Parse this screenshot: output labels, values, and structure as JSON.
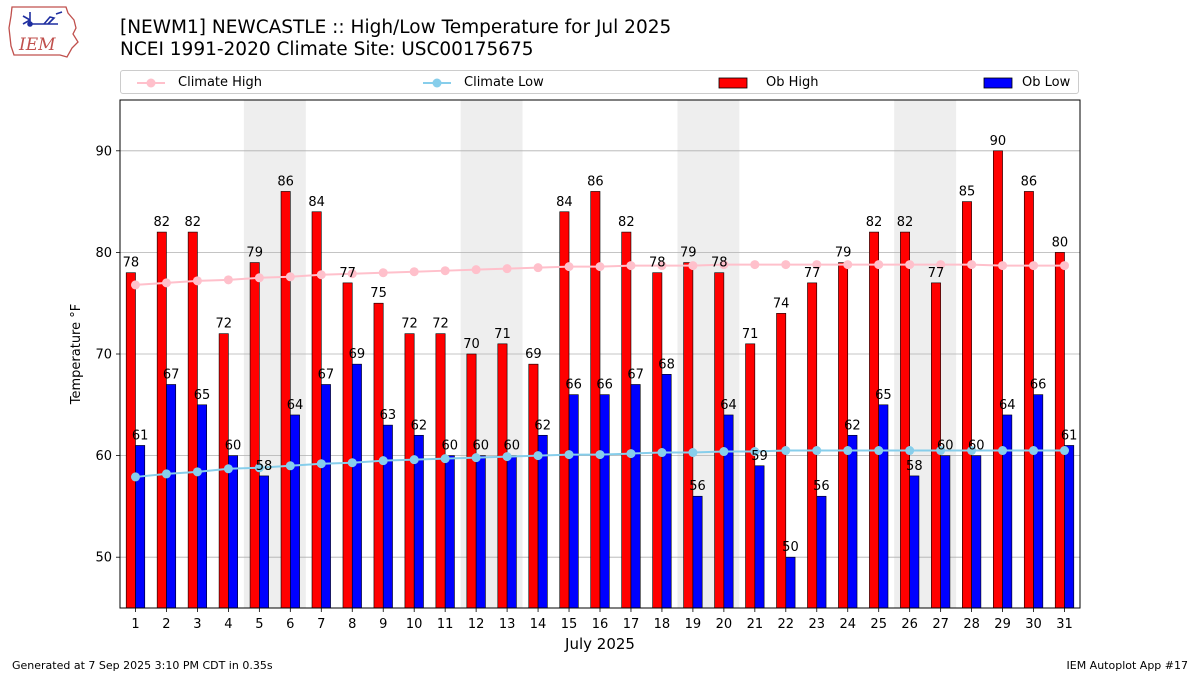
{
  "header": {
    "logo_text": "IEM",
    "title_line1": "[NEWM1] NEWCASTLE :: High/Low Temperature for Jul 2025",
    "title_line2": "NCEI 1991-2020 Climate Site: USC00175675"
  },
  "footer": {
    "left": "Generated at 7 Sep 2025 3:10 PM CDT in 0.35s",
    "right": "IEM Autoplot App #17"
  },
  "colors": {
    "ob_high": "#ff0000",
    "ob_low": "#0000ff",
    "climate_high": "#ffc0cb",
    "climate_low": "#87ceeb",
    "weekend_shade": "#eeeeee",
    "grid": "#b0b0b0"
  },
  "chart_data": {
    "type": "bar",
    "title": "[NEWM1] NEWCASTLE :: High/Low Temperature for Jul 2025",
    "subtitle": "NCEI 1991-2020 Climate Site: USC00175675",
    "xlabel": "July 2025",
    "ylabel": "Temperature °F",
    "ylim": [
      45,
      95
    ],
    "yticks": [
      50,
      60,
      70,
      80,
      90
    ],
    "grid": true,
    "legend_placement": "top",
    "categories": [
      1,
      2,
      3,
      4,
      5,
      6,
      7,
      8,
      9,
      10,
      11,
      12,
      13,
      14,
      15,
      16,
      17,
      18,
      19,
      20,
      21,
      22,
      23,
      24,
      25,
      26,
      27,
      28,
      29,
      30,
      31
    ],
    "shaded_days": [
      [
        5,
        6
      ],
      [
        12,
        13
      ],
      [
        19,
        20
      ],
      [
        26,
        27
      ]
    ],
    "series": [
      {
        "name": "Climate High",
        "kind": "line",
        "values": [
          76.8,
          77.0,
          77.2,
          77.3,
          77.5,
          77.6,
          77.8,
          77.9,
          78.0,
          78.1,
          78.2,
          78.3,
          78.4,
          78.5,
          78.6,
          78.6,
          78.7,
          78.7,
          78.7,
          78.8,
          78.8,
          78.8,
          78.8,
          78.8,
          78.8,
          78.8,
          78.8,
          78.8,
          78.7,
          78.7,
          78.7
        ]
      },
      {
        "name": "Climate Low",
        "kind": "line",
        "values": [
          57.9,
          58.2,
          58.4,
          58.7,
          58.8,
          59.0,
          59.2,
          59.3,
          59.5,
          59.6,
          59.7,
          59.8,
          59.9,
          60.0,
          60.1,
          60.1,
          60.2,
          60.3,
          60.3,
          60.4,
          60.4,
          60.5,
          60.5,
          60.5,
          60.5,
          60.5,
          60.5,
          60.5,
          60.5,
          60.5,
          60.5
        ]
      },
      {
        "name": "Ob High",
        "kind": "bar",
        "values": [
          78,
          82,
          82,
          72,
          79,
          86,
          84,
          77,
          75,
          72,
          72,
          70,
          71,
          69,
          84,
          86,
          82,
          78,
          79,
          78,
          71,
          74,
          77,
          79,
          82,
          82,
          77,
          85,
          90,
          86,
          80
        ]
      },
      {
        "name": "Ob Low",
        "kind": "bar",
        "values": [
          61,
          67,
          65,
          60,
          58,
          64,
          67,
          69,
          63,
          62,
          60,
          60,
          60,
          62,
          66,
          66,
          67,
          68,
          56,
          64,
          59,
          50,
          56,
          62,
          65,
          58,
          60,
          60,
          64,
          66,
          61
        ]
      }
    ]
  }
}
